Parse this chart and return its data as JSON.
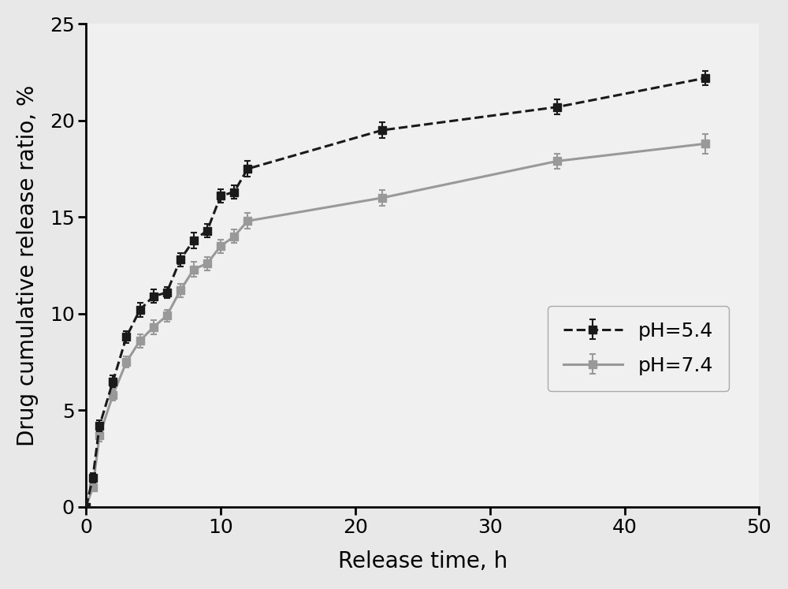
{
  "ph54_x": [
    0,
    0.5,
    1,
    2,
    3,
    4,
    5,
    6,
    7,
    8,
    9,
    10,
    11,
    12,
    22,
    35,
    46
  ],
  "ph54_y": [
    0,
    1.5,
    4.2,
    6.5,
    8.8,
    10.2,
    10.9,
    11.1,
    12.8,
    13.8,
    14.3,
    16.1,
    16.3,
    17.5,
    19.5,
    20.7,
    22.2
  ],
  "ph54_yerr": [
    0,
    0.25,
    0.3,
    0.3,
    0.3,
    0.35,
    0.35,
    0.3,
    0.35,
    0.4,
    0.35,
    0.35,
    0.35,
    0.4,
    0.4,
    0.4,
    0.35
  ],
  "ph74_x": [
    0,
    0.5,
    1,
    2,
    3,
    4,
    5,
    6,
    7,
    8,
    9,
    10,
    11,
    12,
    22,
    35,
    46
  ],
  "ph74_y": [
    0,
    1.0,
    3.7,
    5.8,
    7.5,
    8.6,
    9.3,
    9.9,
    11.2,
    12.3,
    12.6,
    13.5,
    14.0,
    14.8,
    16.0,
    17.9,
    18.8
  ],
  "ph74_yerr": [
    0,
    0.2,
    0.3,
    0.3,
    0.3,
    0.35,
    0.35,
    0.3,
    0.35,
    0.4,
    0.35,
    0.35,
    0.35,
    0.4,
    0.4,
    0.4,
    0.5
  ],
  "xlabel": "Release time, h",
  "ylabel": "Drug cumulative release ratio, %",
  "xlim": [
    0,
    50
  ],
  "ylim": [
    0,
    25
  ],
  "xticks": [
    0,
    10,
    20,
    30,
    40,
    50
  ],
  "yticks": [
    0,
    5,
    10,
    15,
    20,
    25
  ],
  "ph54_color": "#1a1a1a",
  "ph74_color": "#999999",
  "legend_ph54": "pH=5.4",
  "legend_ph74": "pH=7.4",
  "background_color": "#f0f0f0",
  "fig_background": "#e8e8e8"
}
